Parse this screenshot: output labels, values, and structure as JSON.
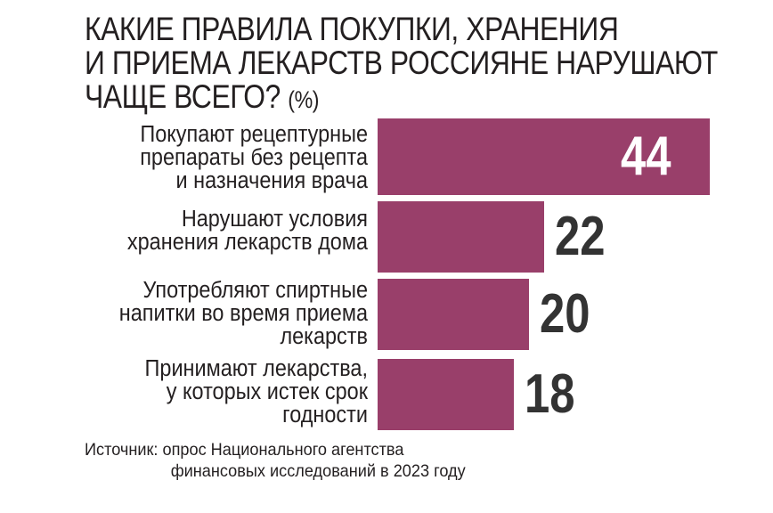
{
  "title": {
    "line1": "КАКИЕ ПРАВИЛА ПОКУПКИ, ХРАНЕНИЯ",
    "line2": "И ПРИЕМА ЛЕКАРСТВ РОССИЯНЕ НАРУШАЮТ",
    "line3": "ЧАЩЕ ВСЕГО?",
    "unit": "(%)"
  },
  "source": {
    "line1": "Источник: опрос Национального агентства",
    "line2": "финансовых исследований в 2023 году"
  },
  "colors": {
    "bar": "#993f6a",
    "value_inside": "#ffffff",
    "value_outside": "#333333"
  },
  "chart_data": {
    "type": "bar",
    "orientation": "horizontal",
    "categories": [
      [
        "Покупают рецептурные",
        "препараты без рецепта",
        "и назначения врача"
      ],
      [
        "Нарушают условия",
        "хранения лекарств дома"
      ],
      [
        "Употребляют спиртные",
        "напитки во время приема",
        "лекарств"
      ],
      [
        "Принимают лекарства,",
        "у которых истек срок",
        "годности"
      ]
    ],
    "values": [
      44,
      22,
      20,
      18
    ],
    "value_labels": [
      "44",
      "22",
      "20",
      "18"
    ],
    "xlim": [
      0,
      44
    ],
    "grid": false,
    "legend": "none"
  }
}
